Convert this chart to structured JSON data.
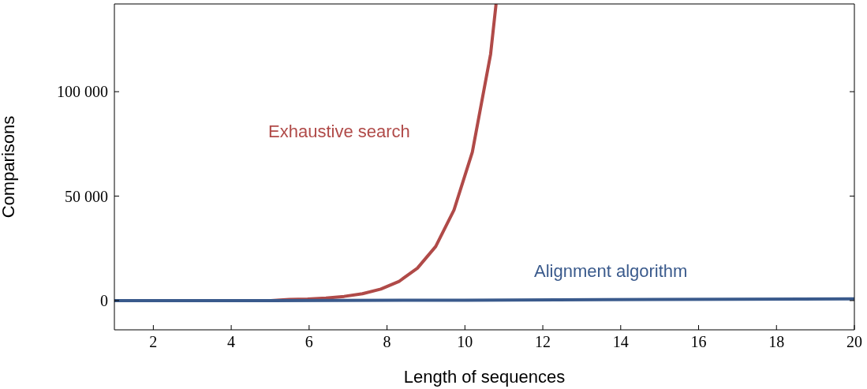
{
  "chart_data": {
    "type": "line",
    "xlabel": "Length of sequences",
    "ylabel": "Comparisons",
    "xlim": [
      1,
      20
    ],
    "xticks": [
      2,
      4,
      6,
      8,
      10,
      12,
      14,
      16,
      18,
      20
    ],
    "ylim": [
      -14000,
      142000
    ],
    "yticks": [
      0,
      {
        "value": 50000,
        "label": "50 000"
      },
      {
        "value": 100000,
        "label": "100 000"
      }
    ],
    "marker": "none",
    "line_style": "solid",
    "series": [
      {
        "name": "Exhaustive search",
        "color": "#b04a48",
        "x": [
          1,
          4.55,
          5.02,
          5.49,
          5.96,
          6.43,
          6.9,
          7.37,
          7.84,
          8.31,
          8.78,
          9.25,
          9.72,
          10.19,
          10.66,
          10.8
        ],
        "values": [
          0,
          0,
          0,
          500,
          700,
          1200,
          2000,
          3300,
          5500,
          9200,
          15500,
          25900,
          43400,
          71000,
          118000,
          142000
        ]
      },
      {
        "name": "Alignment algorithm",
        "color": "#3a5a8c",
        "x": [
          1,
          5,
          10,
          15,
          20
        ],
        "values": [
          0,
          0,
          200,
          500,
          800
        ]
      }
    ]
  }
}
